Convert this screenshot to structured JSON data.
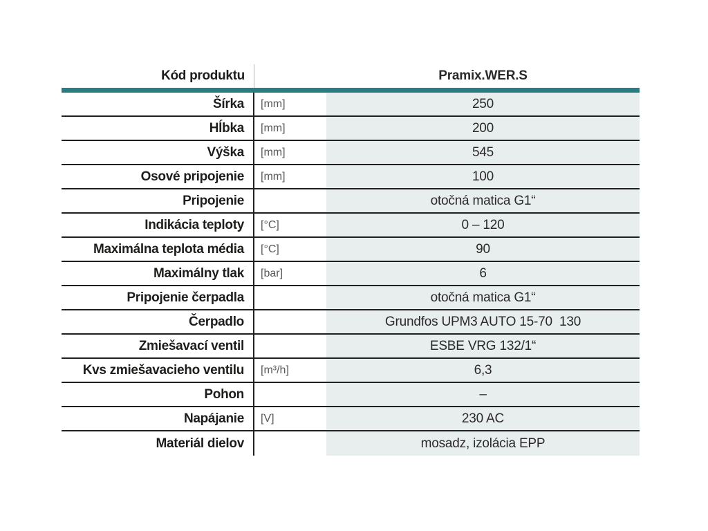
{
  "colors": {
    "accent_teal": "#2a7c83",
    "value_column_bg": "#e8eeed",
    "row_line": "#1f1f1f",
    "label_text": "#1d1d1b",
    "unit_text": "#575756",
    "value_text": "#2b2a29"
  },
  "table": {
    "header": {
      "label": "Kód produktu",
      "product": "Pramix.WER.S"
    },
    "rows": [
      {
        "label": "Šírka",
        "unit": "[mm]",
        "value": "250"
      },
      {
        "label": "Hĺbka",
        "unit": "[mm]",
        "value": "200"
      },
      {
        "label": "Výška",
        "unit": "[mm]",
        "value": "545"
      },
      {
        "label": "Osové pripojenie",
        "unit": "[mm]",
        "value": "100"
      },
      {
        "label": "Pripojenie",
        "unit": "",
        "value": "otočná matica G1“"
      },
      {
        "label": "Indikácia teploty",
        "unit": "[°C]",
        "value": "0 – 120"
      },
      {
        "label": "Maximálna teplota média",
        "unit": "[°C]",
        "value": "90"
      },
      {
        "label": "Maximálny tlak",
        "unit": "[bar]",
        "value": "6"
      },
      {
        "label": "Pripojenie čerpadla",
        "unit": "",
        "value": "otočná matica G1“"
      },
      {
        "label": "Čerpadlo",
        "unit": "",
        "value": "Grundfos UPM3 AUTO 15-70  130"
      },
      {
        "label": "Zmiešavací ventil",
        "unit": "",
        "value": "ESBE VRG 132/1“"
      },
      {
        "label": "Kvs zmiešavacieho ventilu",
        "unit": "[m³/h]",
        "value": "6,3"
      },
      {
        "label": "Pohon",
        "unit": "",
        "value": "–"
      },
      {
        "label": "Napájanie",
        "unit": "[V]",
        "value": "230 AC"
      },
      {
        "label": "Materiál dielov",
        "unit": "",
        "value": "mosadz, izolácia EPP"
      }
    ]
  }
}
